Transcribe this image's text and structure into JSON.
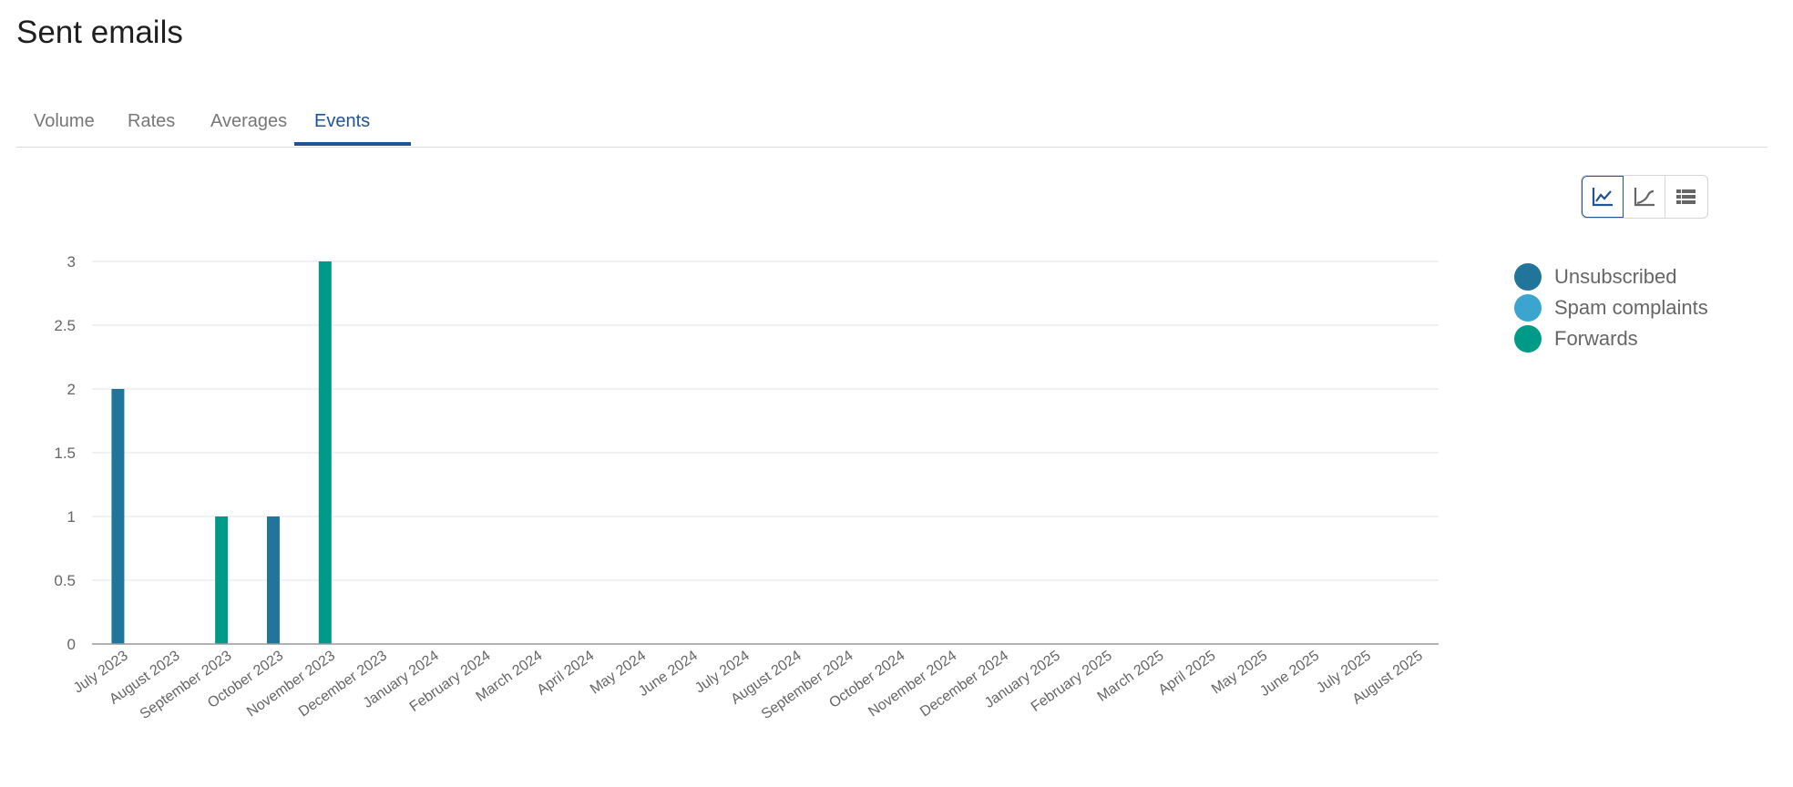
{
  "page": {
    "title": "Sent emails"
  },
  "tabs": [
    {
      "label": "Volume",
      "active": false
    },
    {
      "label": "Rates",
      "active": false
    },
    {
      "label": "Averages",
      "active": false
    },
    {
      "label": "Events",
      "active": true
    }
  ],
  "view_buttons": [
    {
      "icon": "line-chart-icon",
      "active": true
    },
    {
      "icon": "cumulative-chart-icon",
      "active": false
    },
    {
      "icon": "table-list-icon",
      "active": false
    }
  ],
  "colors": {
    "accent": "#1f5394"
  },
  "chart_data": {
    "type": "bar",
    "categories": [
      "July 2023",
      "August 2023",
      "September 2023",
      "October 2023",
      "November 2023",
      "December 2023",
      "January 2024",
      "February 2024",
      "March 2024",
      "April 2024",
      "May 2024",
      "June 2024",
      "July 2024",
      "August 2024",
      "September 2024",
      "October 2024",
      "November 2024",
      "December 2024",
      "January 2025",
      "February 2025",
      "March 2025",
      "April 2025",
      "May 2025",
      "June 2025",
      "July 2025",
      "August 2025"
    ],
    "series": [
      {
        "name": "Unsubscribed",
        "color": "#21759b",
        "values": [
          2,
          0,
          0,
          1,
          0,
          0,
          0,
          0,
          0,
          0,
          0,
          0,
          0,
          0,
          0,
          0,
          0,
          0,
          0,
          0,
          0,
          0,
          0,
          0,
          0,
          0
        ]
      },
      {
        "name": "Spam complaints",
        "color": "#3ba5d0",
        "values": [
          0,
          0,
          0,
          0,
          0,
          0,
          0,
          0,
          0,
          0,
          0,
          0,
          0,
          0,
          0,
          0,
          0,
          0,
          0,
          0,
          0,
          0,
          0,
          0,
          0,
          0
        ]
      },
      {
        "name": "Forwards",
        "color": "#009b88",
        "values": [
          0,
          0,
          1,
          0,
          3,
          0,
          0,
          0,
          0,
          0,
          0,
          0,
          0,
          0,
          0,
          0,
          0,
          0,
          0,
          0,
          0,
          0,
          0,
          0,
          0,
          0
        ]
      }
    ],
    "yticks": [
      "0",
      "0.5",
      "1",
      "1.5",
      "2",
      "2.5",
      "3"
    ],
    "ylim": [
      0,
      3
    ],
    "grid": true,
    "legend": "right"
  }
}
